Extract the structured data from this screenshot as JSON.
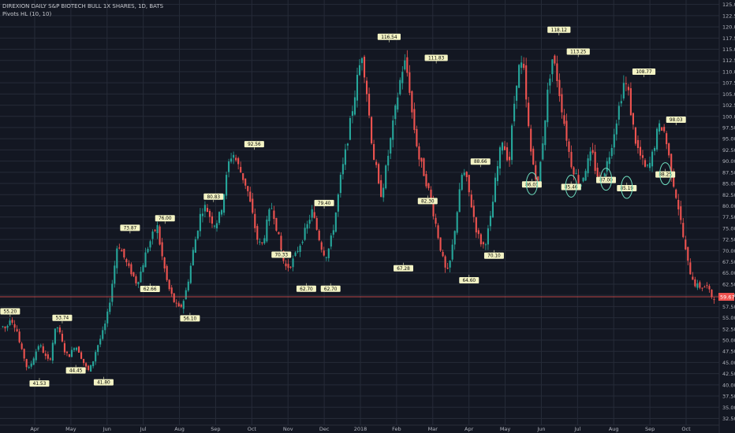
{
  "header": {
    "title": "DIREXION DAILY S&P BIOTECH BULL 1X SHARES, 1D, BATS",
    "indicator": "Pivots HL (10, 10)"
  },
  "colors": {
    "background": "#131722",
    "grid": "#262b38",
    "up": "#26a69a",
    "down": "#ef5350",
    "pivot_label_bg": "#f3f3c4",
    "pivot_label_text": "#000000",
    "ellipse": "#6fe0c0",
    "price_line": "#ef5350",
    "axis_text": "#b2b5be"
  },
  "chart_data": {
    "type": "candlestick",
    "symbol": "DIREXION DAILY S&P BIOTECH BULL 1X SHARES",
    "interval": "1D",
    "exchange": "BATS",
    "y_axis": {
      "ticks": [
        "125.00",
        "122.50",
        "120.00",
        "117.50",
        "115.00",
        "112.50",
        "110.00",
        "107.50",
        "105.00",
        "102.50",
        "100.00",
        "97.50",
        "95.00",
        "92.50",
        "90.00",
        "87.50",
        "85.00",
        "82.50",
        "80.00",
        "77.50",
        "75.00",
        "72.50",
        "70.00",
        "67.50",
        "65.00",
        "62.50",
        "60.00",
        "57.50",
        "55.00",
        "52.50",
        "50.00",
        "47.50",
        "45.00",
        "42.50",
        "40.00",
        "37.50",
        "35.00",
        "32.50"
      ],
      "min": 31,
      "max": 126
    },
    "x_axis": {
      "ticks": [
        "Apr",
        "May",
        "Jun",
        "Jul",
        "Aug",
        "Sep",
        "Oct",
        "Nov",
        "Dec",
        "2018",
        "Feb",
        "Mar",
        "Apr",
        "May",
        "Jun",
        "Jul",
        "Aug",
        "Sep",
        "Oct"
      ]
    },
    "last_price": {
      "value": 59.67,
      "label": "59.67"
    },
    "pivot_highs": [
      {
        "label": "55.20",
        "value": 55.2,
        "pos": 0.012
      },
      {
        "label": "53.74",
        "value": 53.74,
        "pos": 0.085
      },
      {
        "label": "73.87",
        "value": 73.87,
        "pos": 0.18
      },
      {
        "label": "76.00",
        "value": 76.0,
        "pos": 0.229
      },
      {
        "label": "80.83",
        "value": 80.83,
        "pos": 0.297
      },
      {
        "label": "92.56",
        "value": 92.56,
        "pos": 0.354
      },
      {
        "label": "79.40",
        "value": 79.4,
        "pos": 0.452
      },
      {
        "label": "116.54",
        "value": 116.54,
        "pos": 0.543
      },
      {
        "label": "111.83",
        "value": 111.83,
        "pos": 0.609
      },
      {
        "label": "88.66",
        "value": 88.66,
        "pos": 0.671
      },
      {
        "label": "118.12",
        "value": 118.12,
        "pos": 0.781
      },
      {
        "label": "113.25",
        "value": 113.25,
        "pos": 0.808
      },
      {
        "label": "108.77",
        "value": 108.77,
        "pos": 0.9
      },
      {
        "label": "98.03",
        "value": 98.03,
        "pos": 0.945
      }
    ],
    "pivot_lows": [
      {
        "label": "41.53",
        "value": 41.53,
        "pos": 0.053
      },
      {
        "label": "44.45",
        "value": 44.45,
        "pos": 0.104
      },
      {
        "label": "41.80",
        "value": 41.8,
        "pos": 0.143
      },
      {
        "label": "62.66",
        "value": 62.66,
        "pos": 0.208
      },
      {
        "label": "56.10",
        "value": 56.1,
        "pos": 0.264
      },
      {
        "label": "70.33",
        "value": 70.33,
        "pos": 0.392
      },
      {
        "label": "62.70",
        "value": 62.7,
        "pos": 0.427
      },
      {
        "label": "62.70",
        "value": 62.7,
        "pos": 0.461
      },
      {
        "label": "67.28",
        "value": 67.28,
        "pos": 0.563
      },
      {
        "label": "82.30",
        "value": 82.3,
        "pos": 0.597
      },
      {
        "label": "64.60",
        "value": 64.6,
        "pos": 0.655
      },
      {
        "label": "70.10",
        "value": 70.1,
        "pos": 0.69
      },
      {
        "label": "86.01",
        "value": 86.01,
        "pos": 0.743
      },
      {
        "label": "85.46",
        "value": 85.46,
        "pos": 0.798
      },
      {
        "label": "87.00",
        "value": 87.0,
        "pos": 0.847
      },
      {
        "label": "85.19",
        "value": 85.19,
        "pos": 0.876
      },
      {
        "label": "88.25",
        "value": 88.25,
        "pos": 0.93
      }
    ],
    "circled_lows": [
      12,
      13,
      14,
      15,
      16
    ],
    "series": [
      53,
      52.5,
      55,
      54,
      52,
      48,
      46,
      43,
      45,
      47,
      49,
      48,
      46,
      45,
      50,
      53.5,
      51,
      48,
      46.5,
      47,
      49,
      48,
      46,
      44,
      43,
      45,
      48,
      50,
      52,
      55,
      60,
      66,
      72,
      70,
      68,
      66,
      65,
      63,
      64,
      67,
      70,
      72,
      74,
      75.5,
      70,
      66,
      62,
      60,
      58,
      57,
      58,
      61,
      65,
      70,
      74,
      78,
      80,
      79,
      77,
      76,
      77,
      80,
      85,
      90,
      92,
      90,
      88,
      86,
      84,
      80,
      76,
      72,
      71,
      74,
      78,
      80,
      76,
      72,
      68,
      66,
      67,
      68,
      70,
      72,
      74,
      76,
      79,
      76,
      73,
      70,
      69,
      71,
      75,
      80,
      86,
      90,
      95,
      100,
      105,
      110,
      114,
      108,
      100,
      92,
      88,
      82,
      85,
      90,
      95,
      100,
      105,
      110,
      112,
      108,
      100,
      95,
      90,
      88,
      85,
      82,
      78,
      74,
      70,
      66,
      65,
      70,
      76,
      82,
      88,
      86,
      82,
      78,
      74,
      72,
      71,
      74,
      78,
      85,
      90,
      95,
      92,
      90,
      100,
      108,
      112,
      110,
      100,
      92,
      88,
      85,
      92,
      100,
      108,
      113,
      110,
      105,
      100,
      95,
      90,
      88,
      86,
      85,
      88,
      90,
      92,
      88,
      86,
      87,
      89,
      92,
      96,
      100,
      104,
      108,
      106,
      100,
      95,
      92,
      90,
      88,
      89,
      92,
      96,
      98,
      97,
      93,
      88,
      84,
      80,
      75,
      70,
      66,
      64,
      62,
      62,
      62,
      62,
      60,
      59.67
    ]
  }
}
